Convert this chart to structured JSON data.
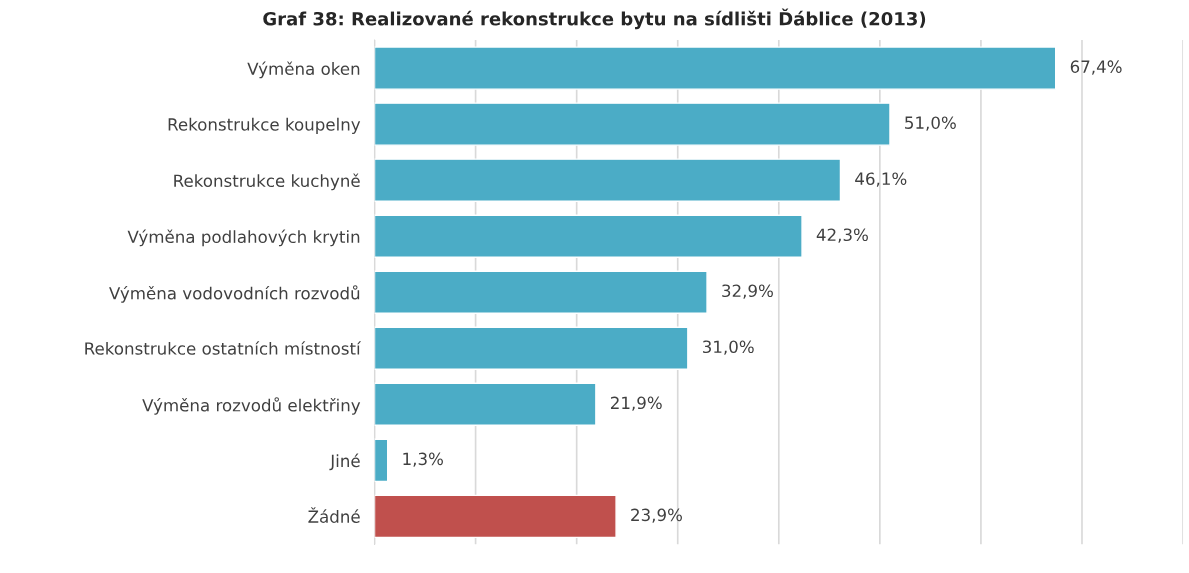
{
  "chart_data": {
    "type": "bar",
    "orientation": "horizontal",
    "title": "Graf 38: Realizované rekonstrukce bytu na sídlišti Ďáblice (2013)",
    "categories": [
      "Výměna oken",
      "Rekonstrukce koupelny",
      "Rekonstrukce kuchyně",
      "Výměna podlahových krytin",
      "Výměna vodovodních rozvodů",
      "Rekonstrukce ostatních místností",
      "Výměna rozvodů elektřiny",
      "Jiné",
      "Žádné"
    ],
    "values": [
      67.4,
      51.0,
      46.1,
      42.3,
      32.9,
      31.0,
      21.9,
      1.3,
      23.9
    ],
    "value_labels": [
      "67,4%",
      "51,0%",
      "46,1%",
      "42,3%",
      "32,9%",
      "31,0%",
      "21,9%",
      "1,3%",
      "23,9%"
    ],
    "colors": [
      "#4bacc6",
      "#4bacc6",
      "#4bacc6",
      "#4bacc6",
      "#4bacc6",
      "#4bacc6",
      "#4bacc6",
      "#4bacc6",
      "#c0504d"
    ],
    "xlim": [
      0,
      80
    ],
    "xticks": [
      {
        "value": 0,
        "label": null
      },
      {
        "value": 10,
        "label": null
      },
      {
        "value": 20,
        "label": null
      },
      {
        "value": 30,
        "label": null
      },
      {
        "value": 40,
        "label": null
      },
      {
        "value": 50,
        "label": null
      },
      {
        "value": 60,
        "label": null
      },
      {
        "value": 70,
        "label": null
      },
      {
        "value": 80,
        "label": null
      }
    ],
    "grid": "x"
  }
}
